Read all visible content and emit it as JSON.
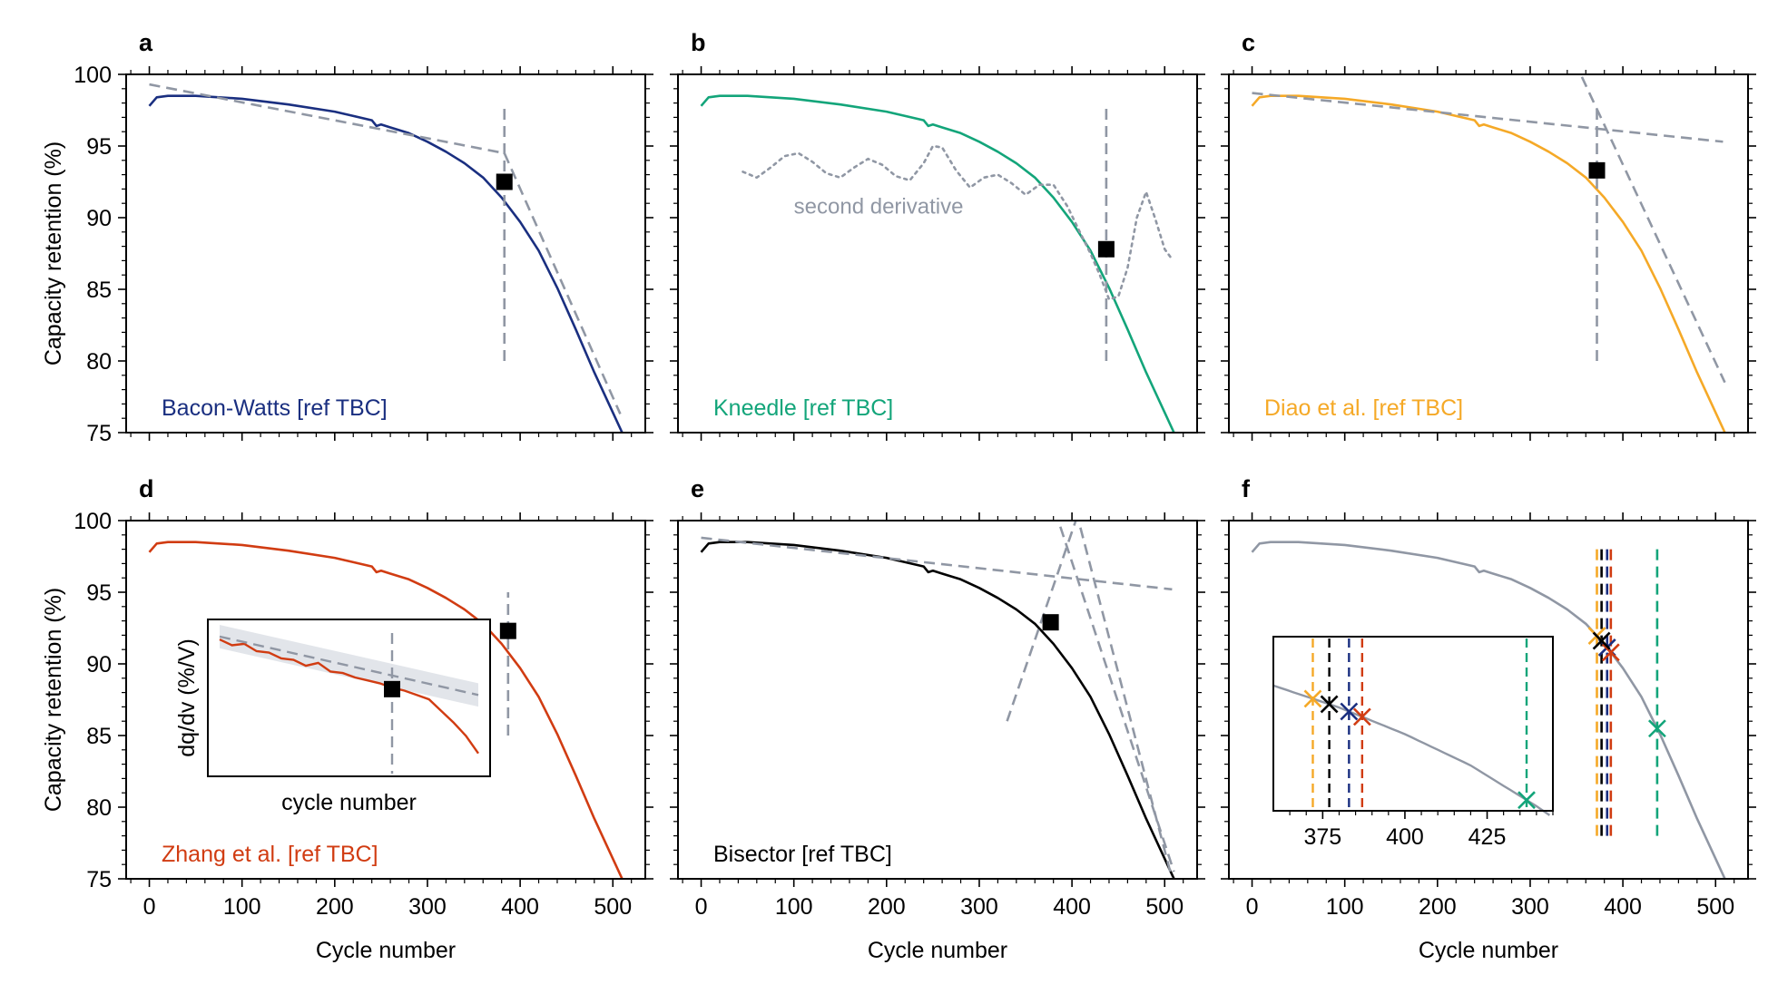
{
  "colors": {
    "gray": "#9097a4",
    "navy": "#1a2f80",
    "green": "#13a57a",
    "orange": "#f5a927",
    "red": "#d13c12",
    "black": "#000000",
    "band": "#dfe2e8"
  },
  "axes": {
    "xlabel": "Cycle number",
    "ylabel": "Capacity retention (%)",
    "xticks": [
      "0",
      "100",
      "200",
      "300",
      "400",
      "500"
    ],
    "yticks": [
      "75",
      "80",
      "85",
      "90",
      "95",
      "100"
    ],
    "xlim": [
      -25,
      535
    ],
    "ylim": [
      75,
      100
    ]
  },
  "panels": [
    {
      "tag": "a",
      "method": "Bacon-Watts [ref TBC]"
    },
    {
      "tag": "b",
      "method": "Kneedle [ref TBC]",
      "annotation": "second derivative"
    },
    {
      "tag": "c",
      "method": "Diao et al. [ref TBC]"
    },
    {
      "tag": "d",
      "method": "Zhang et al. [ref TBC]",
      "inset_xlabel": "cycle number",
      "inset_ylabel": "dq/dv (%/V)"
    },
    {
      "tag": "e",
      "method": "Bisector [ref TBC]"
    },
    {
      "tag": "f",
      "inset_xticks": [
        "375",
        "400",
        "425"
      ]
    }
  ],
  "chart_data": {
    "type": "line",
    "x": [
      0,
      8,
      20,
      50,
      100,
      150,
      200,
      240,
      245,
      250,
      260,
      280,
      300,
      320,
      340,
      360,
      380,
      400,
      420,
      440,
      460,
      480,
      500,
      510
    ],
    "retention": [
      97.8,
      98.4,
      98.5,
      98.5,
      98.3,
      97.9,
      97.4,
      96.8,
      96.4,
      96.5,
      96.3,
      95.9,
      95.3,
      94.6,
      93.8,
      92.8,
      91.4,
      89.7,
      87.7,
      85.1,
      82.2,
      79.2,
      76.4,
      75.0
    ],
    "knee_points": [
      {
        "method": "Bacon-Watts",
        "x": 383,
        "y": 92.5,
        "color": "#1a2f80"
      },
      {
        "method": "Kneedle",
        "x": 437,
        "y": 87.8,
        "color": "#13a57a"
      },
      {
        "method": "Diao et al.",
        "x": 372,
        "y": 93.3,
        "color": "#f5a927"
      },
      {
        "method": "Zhang et al.",
        "x": 387,
        "y": 92.3,
        "color": "#d13c12"
      },
      {
        "method": "Bisector",
        "x": 377,
        "y": 92.9,
        "color": "#000000"
      }
    ],
    "fits": {
      "bacon_watts": [
        [
          [
            0,
            99.3
          ],
          [
            383,
            94.5
          ]
        ],
        [
          [
            383,
            94.5
          ],
          [
            508,
            76.3
          ]
        ]
      ],
      "diao": [
        [
          [
            0,
            98.7
          ],
          [
            508,
            95.3
          ]
        ],
        [
          [
            340,
            102
          ],
          [
            510,
            78.5
          ]
        ]
      ],
      "bisector": [
        [
          [
            0,
            98.8
          ],
          [
            508,
            95.2
          ]
        ],
        [
          [
            395,
            103
          ],
          [
            508,
            75
          ]
        ],
        [
          [
            330,
            86
          ],
          [
            420,
            103
          ]
        ],
        [
          [
            370,
            103
          ],
          [
            510,
            75.5
          ]
        ]
      ]
    },
    "second_derivative": {
      "x": [
        45,
        60,
        75,
        90,
        105,
        120,
        135,
        150,
        165,
        180,
        195,
        210,
        225,
        240,
        250,
        260,
        275,
        290,
        305,
        320,
        335,
        350,
        365,
        380,
        395,
        410,
        420,
        430,
        440,
        450,
        460,
        470,
        480,
        490,
        500,
        508
      ],
      "y": [
        93.2,
        92.8,
        93.5,
        94.3,
        94.5,
        93.9,
        93.1,
        92.8,
        93.5,
        94.1,
        93.7,
        92.9,
        92.6,
        93.8,
        95.0,
        94.9,
        93.3,
        92.1,
        92.8,
        93.0,
        92.4,
        91.6,
        92.3,
        92.3,
        90.8,
        88.8,
        87.5,
        86.0,
        84.3,
        84.5,
        86.5,
        90.0,
        91.8,
        89.9,
        87.8,
        87.1
      ]
    },
    "zhang_inset": {
      "x": [
        0,
        1,
        2,
        3,
        4,
        5,
        6,
        7,
        8,
        9,
        10,
        11,
        12,
        13,
        14,
        15,
        16,
        17,
        18,
        19,
        20,
        21
      ],
      "y": [
        0.9,
        0.86,
        0.87,
        0.82,
        0.81,
        0.77,
        0.76,
        0.72,
        0.74,
        0.68,
        0.67,
        0.64,
        0.62,
        0.6,
        0.57,
        0.55,
        0.52,
        0.49,
        0.41,
        0.33,
        0.24,
        0.12
      ],
      "fit": [
        [
          0,
          0.92
        ],
        [
          21,
          0.52
        ]
      ],
      "threshold_x": 14
    },
    "summary_inset": {
      "xlim": [
        360,
        445
      ],
      "xticks": [
        375,
        400,
        425
      ]
    }
  }
}
